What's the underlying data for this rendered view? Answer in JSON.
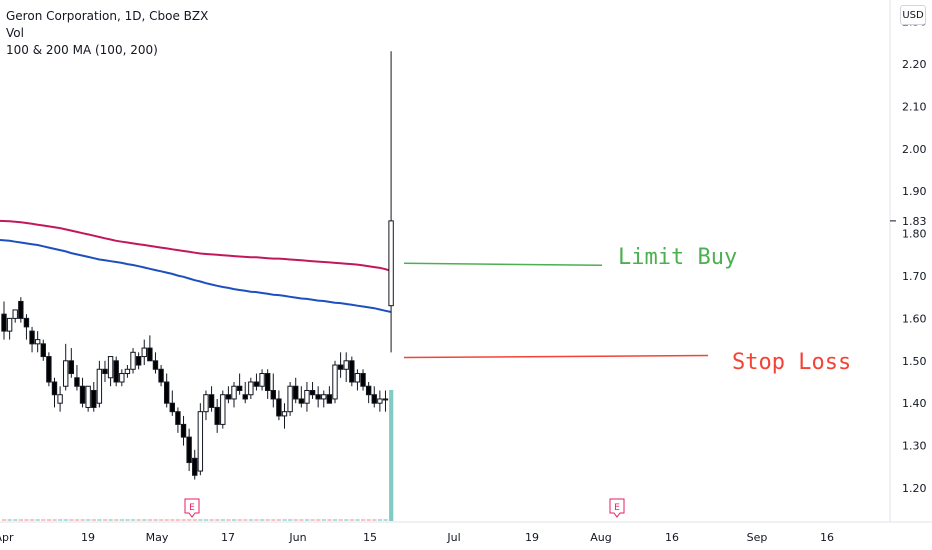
{
  "legend": {
    "title": "Geron Corporation, 1D, Cboe BZX",
    "vol": "Vol",
    "ma": "100 & 200 MA (100, 200)"
  },
  "currency": "USD",
  "annotations": {
    "limit_buy": "Limit Buy",
    "stop_loss": "Stop Loss"
  },
  "colors": {
    "up": "#ffffff",
    "down": "#000000",
    "ma100": "#1e4fbf",
    "ma200": "#c2185b",
    "limit_line": "#4caf50",
    "stop_line": "#f44336",
    "volume_last": "#80cbc4",
    "earnings": "#e91e63"
  },
  "chart_data": {
    "type": "candlestick",
    "symbol": "Geron Corporation, 1D, Cboe BZX",
    "y_axis": {
      "ticks": [
        "1.20",
        "1.30",
        "1.40",
        "1.50",
        "1.60",
        "1.70",
        "1.80",
        "1.90",
        "2.00",
        "2.10",
        "2.20"
      ],
      "current_price": "1.83"
    },
    "x_axis": {
      "ticks": [
        "Apr",
        "19",
        "May",
        "17",
        "Jun",
        "15",
        "Jul",
        "19",
        "Aug",
        "16",
        "Sep",
        "16"
      ]
    },
    "candles": [
      [
        1.61,
        1.64,
        1.55,
        1.57
      ],
      [
        1.57,
        1.6,
        1.55,
        1.6
      ],
      [
        1.6,
        1.62,
        1.59,
        1.62
      ],
      [
        1.64,
        1.65,
        1.59,
        1.6
      ],
      [
        1.6,
        1.61,
        1.55,
        1.58
      ],
      [
        1.57,
        1.58,
        1.52,
        1.54
      ],
      [
        1.54,
        1.57,
        1.52,
        1.55
      ],
      [
        1.54,
        1.55,
        1.5,
        1.51
      ],
      [
        1.51,
        1.52,
        1.44,
        1.45
      ],
      [
        1.45,
        1.46,
        1.39,
        1.42
      ],
      [
        1.4,
        1.44,
        1.38,
        1.42
      ],
      [
        1.44,
        1.54,
        1.43,
        1.5
      ],
      [
        1.5,
        1.53,
        1.46,
        1.47
      ],
      [
        1.46,
        1.49,
        1.43,
        1.44
      ],
      [
        1.44,
        1.46,
        1.39,
        1.4
      ],
      [
        1.39,
        1.44,
        1.38,
        1.44
      ],
      [
        1.43,
        1.45,
        1.38,
        1.39
      ],
      [
        1.4,
        1.5,
        1.39,
        1.48
      ],
      [
        1.48,
        1.5,
        1.45,
        1.47
      ],
      [
        1.46,
        1.51,
        1.44,
        1.51
      ],
      [
        1.5,
        1.51,
        1.44,
        1.45
      ],
      [
        1.45,
        1.48,
        1.44,
        1.47
      ],
      [
        1.47,
        1.49,
        1.46,
        1.48
      ],
      [
        1.48,
        1.53,
        1.47,
        1.52
      ],
      [
        1.51,
        1.52,
        1.48,
        1.49
      ],
      [
        1.51,
        1.55,
        1.49,
        1.53
      ],
      [
        1.53,
        1.56,
        1.51,
        1.5
      ],
      [
        1.5,
        1.52,
        1.47,
        1.48
      ],
      [
        1.48,
        1.49,
        1.44,
        1.45
      ],
      [
        1.45,
        1.47,
        1.39,
        1.4
      ],
      [
        1.4,
        1.43,
        1.37,
        1.38
      ],
      [
        1.38,
        1.39,
        1.33,
        1.35
      ],
      [
        1.35,
        1.37,
        1.3,
        1.32
      ],
      [
        1.32,
        1.34,
        1.24,
        1.26
      ],
      [
        1.27,
        1.29,
        1.22,
        1.23
      ],
      [
        1.24,
        1.4,
        1.23,
        1.38
      ],
      [
        1.38,
        1.43,
        1.36,
        1.42
      ],
      [
        1.42,
        1.44,
        1.38,
        1.39
      ],
      [
        1.39,
        1.41,
        1.33,
        1.35
      ],
      [
        1.35,
        1.43,
        1.34,
        1.42
      ],
      [
        1.42,
        1.44,
        1.4,
        1.41
      ],
      [
        1.41,
        1.45,
        1.39,
        1.44
      ],
      [
        1.44,
        1.47,
        1.42,
        1.43
      ],
      [
        1.42,
        1.45,
        1.4,
        1.41
      ],
      [
        1.42,
        1.46,
        1.41,
        1.45
      ],
      [
        1.45,
        1.47,
        1.43,
        1.44
      ],
      [
        1.44,
        1.48,
        1.43,
        1.47
      ],
      [
        1.47,
        1.48,
        1.41,
        1.43
      ],
      [
        1.43,
        1.47,
        1.39,
        1.41
      ],
      [
        1.41,
        1.43,
        1.36,
        1.37
      ],
      [
        1.37,
        1.4,
        1.34,
        1.38
      ],
      [
        1.38,
        1.45,
        1.37,
        1.44
      ],
      [
        1.44,
        1.46,
        1.4,
        1.41
      ],
      [
        1.41,
        1.44,
        1.39,
        1.4
      ],
      [
        1.4,
        1.45,
        1.38,
        1.43
      ],
      [
        1.43,
        1.45,
        1.41,
        1.42
      ],
      [
        1.42,
        1.44,
        1.39,
        1.41
      ],
      [
        1.41,
        1.43,
        1.39,
        1.42
      ],
      [
        1.42,
        1.44,
        1.4,
        1.4
      ],
      [
        1.41,
        1.5,
        1.4,
        1.49
      ],
      [
        1.49,
        1.52,
        1.46,
        1.48
      ],
      [
        1.48,
        1.52,
        1.45,
        1.5
      ],
      [
        1.5,
        1.51,
        1.44,
        1.45
      ],
      [
        1.45,
        1.48,
        1.43,
        1.47
      ],
      [
        1.47,
        1.48,
        1.43,
        1.44
      ],
      [
        1.44,
        1.45,
        1.4,
        1.42
      ],
      [
        1.42,
        1.44,
        1.39,
        1.4
      ],
      [
        1.4,
        1.43,
        1.38,
        1.41
      ],
      [
        1.41,
        1.43,
        1.38,
        1.41
      ],
      [
        1.63,
        2.23,
        1.52,
        1.83
      ]
    ],
    "ma100": [
      1.785,
      1.783,
      1.781,
      1.779,
      1.777,
      1.775,
      1.773,
      1.77,
      1.767,
      1.764,
      1.761,
      1.758,
      1.754,
      1.751,
      1.748,
      1.745,
      1.742,
      1.739,
      1.737,
      1.735,
      1.733,
      1.731,
      1.728,
      1.726,
      1.723,
      1.72,
      1.717,
      1.714,
      1.711,
      1.708,
      1.705,
      1.701,
      1.698,
      1.694,
      1.69,
      1.687,
      1.683,
      1.68,
      1.677,
      1.674,
      1.672,
      1.669,
      1.667,
      1.665,
      1.663,
      1.662,
      1.66,
      1.658,
      1.656,
      1.655,
      1.653,
      1.651,
      1.649,
      1.647,
      1.646,
      1.644,
      1.642,
      1.641,
      1.639,
      1.637,
      1.636,
      1.634,
      1.632,
      1.63,
      1.628,
      1.626,
      1.624,
      1.621,
      1.618,
      1.615
    ],
    "ma200": [
      1.83,
      1.829,
      1.828,
      1.827,
      1.825,
      1.823,
      1.821,
      1.819,
      1.817,
      1.815,
      1.813,
      1.81,
      1.807,
      1.804,
      1.801,
      1.798,
      1.795,
      1.792,
      1.789,
      1.786,
      1.783,
      1.781,
      1.779,
      1.777,
      1.775,
      1.773,
      1.771,
      1.769,
      1.767,
      1.765,
      1.763,
      1.761,
      1.759,
      1.757,
      1.755,
      1.753,
      1.752,
      1.751,
      1.75,
      1.749,
      1.748,
      1.747,
      1.746,
      1.745,
      1.744,
      1.744,
      1.743,
      1.742,
      1.741,
      1.741,
      1.74,
      1.739,
      1.738,
      1.737,
      1.736,
      1.735,
      1.734,
      1.733,
      1.732,
      1.731,
      1.73,
      1.729,
      1.728,
      1.727,
      1.725,
      1.723,
      1.721,
      1.719,
      1.716,
      1.712
    ],
    "limit_buy_price": 1.73,
    "stop_loss_price": 1.51
  }
}
